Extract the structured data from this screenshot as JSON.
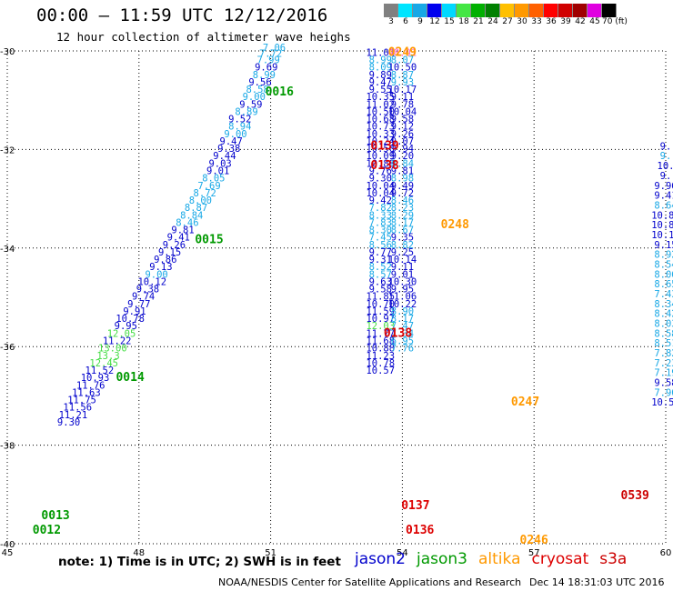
{
  "title": "00:00 – 11:59 UTC 12/12/2016",
  "subtitle": "12 hour collection of altimeter wave heighs",
  "scale": {
    "labels": [
      "3",
      "6",
      "9",
      "12",
      "15",
      "18",
      "21",
      "24",
      "27",
      "30",
      "33",
      "36",
      "39",
      "42",
      "45",
      "70 (ft)"
    ],
    "colors": [
      "#808080",
      "#00e5ff",
      "#18a8e6",
      "#0000ee",
      "#00d8ff",
      "#44e644",
      "#00b000",
      "#008000",
      "#ffc000",
      "#ff9900",
      "#ff6000",
      "#ff0000",
      "#d00000",
      "#a00000",
      "#e000e0",
      "#000000"
    ]
  },
  "axes": {
    "x_ticks": [
      "45",
      "48",
      "51",
      "54",
      "57",
      "60"
    ],
    "y_ticks": [
      "-30",
      "-32",
      "-34",
      "-36",
      "-38",
      "-40"
    ]
  },
  "colors": {
    "jason2": "#0000cc",
    "jason3": "#009900",
    "altika": "#ff9900",
    "cryosat": "#dd0000",
    "s3a": "#cc0000",
    "light": "#18a8e6",
    "bright": "#44dd44",
    "pink": "#ff66cc"
  },
  "chart_data": {
    "type": "scatter",
    "xlim": [
      45,
      60
    ],
    "ylim": [
      -40,
      -30
    ],
    "grid": true,
    "tracks": [
      {
        "name": "0016",
        "x": 51.2,
        "y": -30.9,
        "color": "#009900"
      },
      {
        "name": "0015",
        "x": 49.6,
        "y": -33.9,
        "color": "#009900"
      },
      {
        "name": "0014",
        "x": 47.8,
        "y": -36.7,
        "color": "#009900"
      },
      {
        "name": "0013",
        "x": 46.1,
        "y": -39.5,
        "color": "#009900"
      },
      {
        "name": "0012",
        "x": 45.9,
        "y": -39.8,
        "color": "#009900"
      },
      {
        "name": "0249",
        "x": 54.0,
        "y": -30.1,
        "color": "#ff9900"
      },
      {
        "name": "0139",
        "x": 53.6,
        "y": -32.0,
        "color": "#dd0000"
      },
      {
        "name": "0138",
        "x": 53.6,
        "y": -32.4,
        "color": "#dd0000"
      },
      {
        "name": "0248",
        "x": 55.2,
        "y": -33.6,
        "color": "#ff9900"
      },
      {
        "name": "0138",
        "x": 53.9,
        "y": -35.8,
        "color": "#dd0000"
      },
      {
        "name": "0247",
        "x": 56.8,
        "y": -37.2,
        "color": "#ff9900"
      },
      {
        "name": "0137",
        "x": 54.3,
        "y": -39.3,
        "color": "#dd0000"
      },
      {
        "name": "0136",
        "x": 54.4,
        "y": -39.8,
        "color": "#dd0000"
      },
      {
        "name": "0246",
        "x": 57.0,
        "y": -40.0,
        "color": "#ff9900"
      },
      {
        "name": "0539",
        "x": 59.3,
        "y": -39.1,
        "color": "#cc0000"
      }
    ],
    "points": [
      {
        "v": "7.06",
        "x": 51.08,
        "y": -30.0,
        "c": "light"
      },
      {
        "v": "7.72",
        "x": 51.0,
        "y": -30.12,
        "c": "light"
      },
      {
        "v": "7.99",
        "x": 50.95,
        "y": -30.25,
        "c": "light"
      },
      {
        "v": "9.69",
        "x": 50.9,
        "y": -30.4,
        "c": "jason2"
      },
      {
        "v": "8.99",
        "x": 50.85,
        "y": -30.55,
        "c": "light"
      },
      {
        "v": "9.56",
        "x": 50.76,
        "y": -30.7,
        "c": "jason2"
      },
      {
        "v": "8.58",
        "x": 50.7,
        "y": -30.85,
        "c": "light"
      },
      {
        "v": "9.00",
        "x": 50.62,
        "y": -31.0,
        "c": "light"
      },
      {
        "v": "9.59",
        "x": 50.55,
        "y": -31.15,
        "c": "jason2"
      },
      {
        "v": "8.89",
        "x": 50.45,
        "y": -31.3,
        "c": "light"
      },
      {
        "v": "9.52",
        "x": 50.3,
        "y": -31.45,
        "c": "jason2"
      },
      {
        "v": "8.94",
        "x": 50.3,
        "y": -31.6,
        "c": "light"
      },
      {
        "v": "9.00",
        "x": 50.2,
        "y": -31.75,
        "c": "light"
      },
      {
        "v": "9.47",
        "x": 50.1,
        "y": -31.9,
        "c": "jason2"
      },
      {
        "v": "9.38",
        "x": 50.05,
        "y": -32.05,
        "c": "jason2"
      },
      {
        "v": "9.44",
        "x": 49.95,
        "y": -32.2,
        "c": "jason2"
      },
      {
        "v": "9.03",
        "x": 49.85,
        "y": -32.35,
        "c": "jason2"
      },
      {
        "v": "9.01",
        "x": 49.8,
        "y": -32.5,
        "c": "jason2"
      },
      {
        "v": "8.05",
        "x": 49.7,
        "y": -32.65,
        "c": "light"
      },
      {
        "v": "7.69",
        "x": 49.6,
        "y": -32.8,
        "c": "light"
      },
      {
        "v": "8.72",
        "x": 49.5,
        "y": -32.95,
        "c": "light"
      },
      {
        "v": "8.00",
        "x": 49.4,
        "y": -33.1,
        "c": "light"
      },
      {
        "v": "8.87",
        "x": 49.3,
        "y": -33.25,
        "c": "light"
      },
      {
        "v": "8.84",
        "x": 49.2,
        "y": -33.4,
        "c": "light"
      },
      {
        "v": "8.46",
        "x": 49.1,
        "y": -33.55,
        "c": "light"
      },
      {
        "v": "9.81",
        "x": 49.0,
        "y": -33.7,
        "c": "jason2"
      },
      {
        "v": "9.41",
        "x": 48.9,
        "y": -33.85,
        "c": "jason2"
      },
      {
        "v": "9.26",
        "x": 48.8,
        "y": -34.0,
        "c": "jason2"
      },
      {
        "v": "9.15",
        "x": 48.7,
        "y": -34.15,
        "c": "jason2"
      },
      {
        "v": "9.86",
        "x": 48.6,
        "y": -34.3,
        "c": "jason2"
      },
      {
        "v": "9.13",
        "x": 48.5,
        "y": -34.45,
        "c": "jason2"
      },
      {
        "v": "9.00",
        "x": 48.4,
        "y": -34.6,
        "c": "light"
      },
      {
        "v": "10.12",
        "x": 48.3,
        "y": -34.75,
        "c": "jason2"
      },
      {
        "v": "9.38",
        "x": 48.2,
        "y": -34.9,
        "c": "jason2"
      },
      {
        "v": "9.74",
        "x": 48.1,
        "y": -35.05,
        "c": "jason2"
      },
      {
        "v": "9.77",
        "x": 48.0,
        "y": -35.2,
        "c": "jason2"
      },
      {
        "v": "9.91",
        "x": 47.9,
        "y": -35.35,
        "c": "jason2"
      },
      {
        "v": "10.78",
        "x": 47.8,
        "y": -35.5,
        "c": "jason2"
      },
      {
        "v": "9.95",
        "x": 47.7,
        "y": -35.65,
        "c": "jason2"
      },
      {
        "v": "12.05",
        "x": 47.6,
        "y": -35.8,
        "c": "bright"
      },
      {
        "v": "11.22",
        "x": 47.5,
        "y": -35.95,
        "c": "jason2"
      },
      {
        "v": "13.00",
        "x": 47.4,
        "y": -36.1,
        "c": "bright"
      },
      {
        "v": "13.3",
        "x": 47.3,
        "y": -36.25,
        "c": "bright"
      },
      {
        "v": "12.45",
        "x": 47.2,
        "y": -36.4,
        "c": "bright"
      },
      {
        "v": "11.52",
        "x": 47.1,
        "y": -36.55,
        "c": "jason2"
      },
      {
        "v": "10.93",
        "x": 47.0,
        "y": -36.7,
        "c": "jason2"
      },
      {
        "v": "11.76",
        "x": 46.9,
        "y": -36.85,
        "c": "jason2"
      },
      {
        "v": "11.63",
        "x": 46.8,
        "y": -37.0,
        "c": "jason2"
      },
      {
        "v": "11.75",
        "x": 46.7,
        "y": -37.15,
        "c": "jason2"
      },
      {
        "v": "11.56",
        "x": 46.6,
        "y": -37.3,
        "c": "jason2"
      },
      {
        "v": "11.21",
        "x": 46.5,
        "y": -37.45,
        "c": "jason2"
      },
      {
        "v": "9.30",
        "x": 46.4,
        "y": -37.6,
        "c": "jason2"
      },
      {
        "v": "11.01",
        "x": 53.5,
        "y": -30.1,
        "c": "jason2"
      },
      {
        "v": "8.99",
        "x": 53.5,
        "y": -30.25,
        "c": "light"
      },
      {
        "v": "8.09",
        "x": 53.5,
        "y": -30.4,
        "c": "light"
      },
      {
        "v": "9.89",
        "x": 53.5,
        "y": -30.55,
        "c": "jason2"
      },
      {
        "v": "9.47",
        "x": 53.5,
        "y": -30.7,
        "c": "jason2"
      },
      {
        "v": "9.55",
        "x": 53.5,
        "y": -30.85,
        "c": "jason2"
      },
      {
        "v": "10.35",
        "x": 53.5,
        "y": -31.0,
        "c": "jason2"
      },
      {
        "v": "11.02",
        "x": 53.5,
        "y": -31.15,
        "c": "jason2"
      },
      {
        "v": "10.50",
        "x": 53.5,
        "y": -31.3,
        "c": "jason2"
      },
      {
        "v": "10.68",
        "x": 53.5,
        "y": -31.45,
        "c": "jason2"
      },
      {
        "v": "10.73",
        "x": 53.5,
        "y": -31.6,
        "c": "jason2"
      },
      {
        "v": "10.33",
        "x": 53.5,
        "y": -31.75,
        "c": "jason2"
      },
      {
        "v": "10.24",
        "x": 53.5,
        "y": -31.9,
        "c": "jason2"
      },
      {
        "v": "10.50",
        "x": 53.5,
        "y": -32.05,
        "c": "jason2"
      },
      {
        "v": "10.09",
        "x": 53.5,
        "y": -32.2,
        "c": "jason2"
      },
      {
        "v": "10.88",
        "x": 53.5,
        "y": -32.35,
        "c": "jason2"
      },
      {
        "v": "9.76",
        "x": 53.5,
        "y": -32.5,
        "c": "jason2"
      },
      {
        "v": "9.30",
        "x": 53.5,
        "y": -32.65,
        "c": "jason2"
      },
      {
        "v": "10.04",
        "x": 53.5,
        "y": -32.8,
        "c": "jason2"
      },
      {
        "v": "10.04",
        "x": 53.5,
        "y": -32.95,
        "c": "jason2"
      },
      {
        "v": "9.42",
        "x": 53.5,
        "y": -33.1,
        "c": "jason2"
      },
      {
        "v": "7.82",
        "x": 53.5,
        "y": -33.25,
        "c": "light"
      },
      {
        "v": "8.33",
        "x": 53.5,
        "y": -33.4,
        "c": "light"
      },
      {
        "v": "7.83",
        "x": 53.5,
        "y": -33.55,
        "c": "light"
      },
      {
        "v": "8.30",
        "x": 53.5,
        "y": -33.7,
        "c": "light"
      },
      {
        "v": "7.45",
        "x": 53.5,
        "y": -33.85,
        "c": "light"
      },
      {
        "v": "8.56",
        "x": 53.5,
        "y": -34.0,
        "c": "light"
      },
      {
        "v": "9.77",
        "x": 53.5,
        "y": -34.15,
        "c": "jason2"
      },
      {
        "v": "9.31",
        "x": 53.5,
        "y": -34.3,
        "c": "jason2"
      },
      {
        "v": "8.52",
        "x": 53.5,
        "y": -34.45,
        "c": "light"
      },
      {
        "v": "8.57",
        "x": 53.5,
        "y": -34.6,
        "c": "light"
      },
      {
        "v": "9.63",
        "x": 53.5,
        "y": -34.75,
        "c": "jason2"
      },
      {
        "v": "9.58",
        "x": 53.5,
        "y": -34.9,
        "c": "jason2"
      },
      {
        "v": "11.85",
        "x": 53.5,
        "y": -35.05,
        "c": "jason2"
      },
      {
        "v": "10.70",
        "x": 53.5,
        "y": -35.2,
        "c": "jason2"
      },
      {
        "v": "11.59",
        "x": 53.5,
        "y": -35.35,
        "c": "jason2"
      },
      {
        "v": "10.97",
        "x": 53.5,
        "y": -35.5,
        "c": "jason2"
      },
      {
        "v": "12.03",
        "x": 53.5,
        "y": -35.65,
        "c": "bright"
      },
      {
        "v": "11.77",
        "x": 53.5,
        "y": -35.8,
        "c": "jason2"
      },
      {
        "v": "11.68",
        "x": 53.5,
        "y": -35.95,
        "c": "jason2"
      },
      {
        "v": "10.88",
        "x": 53.5,
        "y": -36.1,
        "c": "jason2"
      },
      {
        "v": "11.23",
        "x": 53.5,
        "y": -36.25,
        "c": "jason2"
      },
      {
        "v": "10.78",
        "x": 53.5,
        "y": -36.4,
        "c": "jason2"
      },
      {
        "v": "10.57",
        "x": 53.5,
        "y": -36.55,
        "c": "jason2"
      },
      {
        "v": "48.01",
        "x": 54.0,
        "y": -30.1,
        "c": "pink"
      },
      {
        "v": "8.07",
        "x": 54.0,
        "y": -30.25,
        "c": "light"
      },
      {
        "v": "10.50",
        "x": 54.0,
        "y": -30.4,
        "c": "jason2"
      },
      {
        "v": "8.87",
        "x": 54.0,
        "y": -30.55,
        "c": "light"
      },
      {
        "v": "9.93",
        "x": 54.0,
        "y": -30.7,
        "c": "light"
      },
      {
        "v": "10.17",
        "x": 54.0,
        "y": -30.85,
        "c": "jason2"
      },
      {
        "v": "9.11",
        "x": 54.0,
        "y": -31.0,
        "c": "jason2"
      },
      {
        "v": "9.78",
        "x": 54.0,
        "y": -31.15,
        "c": "jason2"
      },
      {
        "v": "10.04",
        "x": 54.0,
        "y": -31.3,
        "c": "jason2"
      },
      {
        "v": "9.58",
        "x": 54.0,
        "y": -31.45,
        "c": "jason2"
      },
      {
        "v": "9.12",
        "x": 54.0,
        "y": -31.6,
        "c": "jason2"
      },
      {
        "v": "9.26",
        "x": 54.0,
        "y": -31.75,
        "c": "jason2"
      },
      {
        "v": "9.07",
        "x": 54.0,
        "y": -31.9,
        "c": "jason2"
      },
      {
        "v": "9.94",
        "x": 54.0,
        "y": -32.05,
        "c": "jason2"
      },
      {
        "v": "9.20",
        "x": 54.0,
        "y": -32.2,
        "c": "jason2"
      },
      {
        "v": "8.84",
        "x": 54.0,
        "y": -32.35,
        "c": "light"
      },
      {
        "v": "9.81",
        "x": 54.0,
        "y": -32.5,
        "c": "jason2"
      },
      {
        "v": "8.98",
        "x": 54.0,
        "y": -32.65,
        "c": "light"
      },
      {
        "v": "9.49",
        "x": 54.0,
        "y": -32.8,
        "c": "jason2"
      },
      {
        "v": "9.72",
        "x": 54.0,
        "y": -32.95,
        "c": "jason2"
      },
      {
        "v": "8.46",
        "x": 54.0,
        "y": -33.1,
        "c": "light"
      },
      {
        "v": "8.23",
        "x": 54.0,
        "y": -33.25,
        "c": "light"
      },
      {
        "v": "8.29",
        "x": 54.0,
        "y": -33.4,
        "c": "light"
      },
      {
        "v": "8.17",
        "x": 54.0,
        "y": -33.55,
        "c": "light"
      },
      {
        "v": "8.67",
        "x": 54.0,
        "y": -33.7,
        "c": "light"
      },
      {
        "v": "9.35",
        "x": 54.0,
        "y": -33.85,
        "c": "jason2"
      },
      {
        "v": "8.82",
        "x": 54.0,
        "y": -34.0,
        "c": "light"
      },
      {
        "v": "9.25",
        "x": 54.0,
        "y": -34.15,
        "c": "jason2"
      },
      {
        "v": "10.14",
        "x": 54.0,
        "y": -34.3,
        "c": "jason2"
      },
      {
        "v": "9.11",
        "x": 54.0,
        "y": -34.45,
        "c": "jason2"
      },
      {
        "v": "9.01",
        "x": 54.0,
        "y": -34.6,
        "c": "jason2"
      },
      {
        "v": "10.30",
        "x": 54.0,
        "y": -34.75,
        "c": "jason2"
      },
      {
        "v": "9.95",
        "x": 54.0,
        "y": -34.9,
        "c": "jason2"
      },
      {
        "v": "11.06",
        "x": 54.0,
        "y": -35.05,
        "c": "jason2"
      },
      {
        "v": "10.22",
        "x": 54.0,
        "y": -35.2,
        "c": "jason2"
      },
      {
        "v": "8.90",
        "x": 54.0,
        "y": -35.35,
        "c": "light"
      },
      {
        "v": "8.17",
        "x": 54.0,
        "y": -35.5,
        "c": "light"
      },
      {
        "v": "7.47",
        "x": 54.0,
        "y": -35.65,
        "c": "light"
      },
      {
        "v": "7.34",
        "x": 54.0,
        "y": -35.8,
        "c": "light"
      },
      {
        "v": "6.95",
        "x": 54.0,
        "y": -35.95,
        "c": "light"
      },
      {
        "v": "7.76",
        "x": 54.0,
        "y": -36.1,
        "c": "light"
      },
      {
        "v": "9.",
        "x": 60.0,
        "y": -32.0,
        "c": "jason2"
      },
      {
        "v": "9.",
        "x": 60.0,
        "y": -32.2,
        "c": "light"
      },
      {
        "v": "10.",
        "x": 60.0,
        "y": -32.4,
        "c": "jason2"
      },
      {
        "v": "9.",
        "x": 60.0,
        "y": -32.6,
        "c": "jason2"
      },
      {
        "v": "9.96",
        "x": 60.0,
        "y": -32.8,
        "c": "jason2"
      },
      {
        "v": "9.41",
        "x": 60.0,
        "y": -33.0,
        "c": "jason2"
      },
      {
        "v": "8.64",
        "x": 60.0,
        "y": -33.2,
        "c": "light"
      },
      {
        "v": "10.81",
        "x": 60.0,
        "y": -33.4,
        "c": "jason2"
      },
      {
        "v": "10.89",
        "x": 60.0,
        "y": -33.6,
        "c": "jason2"
      },
      {
        "v": "10.10",
        "x": 60.0,
        "y": -33.8,
        "c": "jason2"
      },
      {
        "v": "9.15",
        "x": 60.0,
        "y": -34.0,
        "c": "jason2"
      },
      {
        "v": "8.92",
        "x": 60.0,
        "y": -34.2,
        "c": "light"
      },
      {
        "v": "8.54",
        "x": 60.0,
        "y": -34.4,
        "c": "light"
      },
      {
        "v": "8.06",
        "x": 60.0,
        "y": -34.6,
        "c": "light"
      },
      {
        "v": "8.65",
        "x": 60.0,
        "y": -34.8,
        "c": "light"
      },
      {
        "v": "7.43",
        "x": 60.0,
        "y": -35.0,
        "c": "light"
      },
      {
        "v": "8.34",
        "x": 60.0,
        "y": -35.2,
        "c": "light"
      },
      {
        "v": "8.42",
        "x": 60.0,
        "y": -35.4,
        "c": "light"
      },
      {
        "v": "8.03",
        "x": 60.0,
        "y": -35.6,
        "c": "light"
      },
      {
        "v": "8.58",
        "x": 60.0,
        "y": -35.8,
        "c": "light"
      },
      {
        "v": "8.51",
        "x": 60.0,
        "y": -36.0,
        "c": "light"
      },
      {
        "v": "7.82",
        "x": 60.0,
        "y": -36.2,
        "c": "light"
      },
      {
        "v": "7.23",
        "x": 60.0,
        "y": -36.4,
        "c": "light"
      },
      {
        "v": "7.19",
        "x": 60.0,
        "y": -36.6,
        "c": "light"
      },
      {
        "v": "9.58",
        "x": 60.0,
        "y": -36.8,
        "c": "jason2"
      },
      {
        "v": "7.90",
        "x": 60.0,
        "y": -37.0,
        "c": "light"
      },
      {
        "v": "10.55",
        "x": 60.0,
        "y": -37.2,
        "c": "jason2"
      }
    ]
  },
  "footer": {
    "note": "note: 1) Time is in UTC; 2) SWH is in feet",
    "satellites": [
      {
        "label": "jason2",
        "color": "#0000cc"
      },
      {
        "label": "jason3",
        "color": "#009900"
      },
      {
        "label": "altika",
        "color": "#ff9900"
      },
      {
        "label": "cryosat",
        "color": "#dd0000"
      },
      {
        "label": "s3a",
        "color": "#cc0000"
      }
    ],
    "credit": "NOAA/NESDIS Center for Satellite Applications and Research",
    "timestamp": "Dec 14 18:31:03 UTC 2016"
  }
}
